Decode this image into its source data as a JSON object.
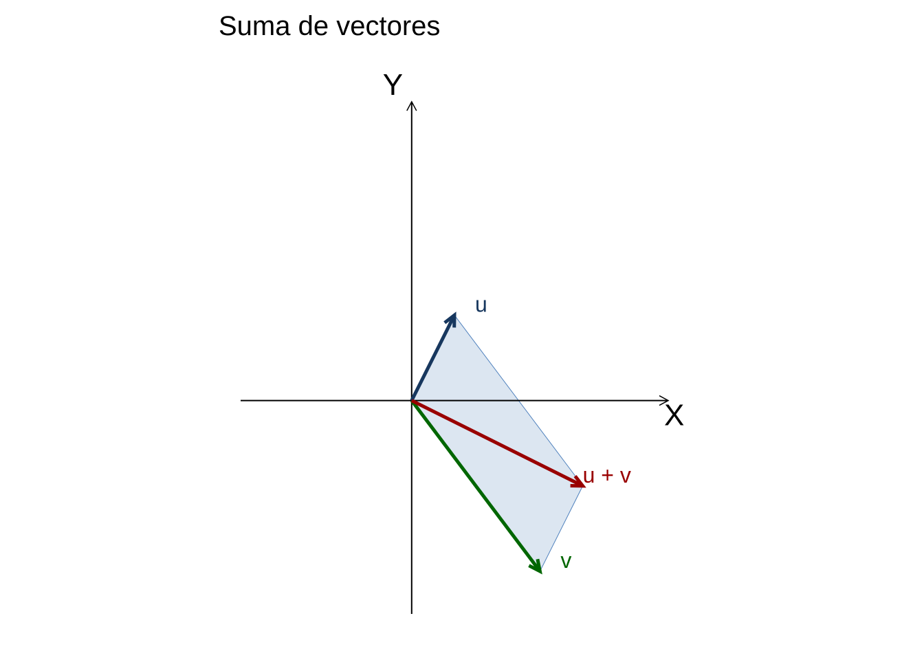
{
  "chart_data": {
    "type": "vector-diagram",
    "title": "Suma de vectores",
    "xlabel": "X",
    "ylabel": "Y",
    "xlim": [
      -2,
      3
    ],
    "ylim": [
      -2.5,
      3.5
    ],
    "grid": false,
    "parallelogram_fill": "#dce6f1",
    "parallelogram_edge": "#4f81bd",
    "vectors": [
      {
        "name": "u",
        "from": [
          0,
          0
        ],
        "to": [
          0.5,
          1
        ],
        "color": "#17375e"
      },
      {
        "name": "v",
        "from": [
          0,
          0
        ],
        "to": [
          1.5,
          -2
        ],
        "color": "#006600"
      },
      {
        "name": "u + v",
        "from": [
          0,
          0
        ],
        "to": [
          2,
          -1
        ],
        "color": "#990000"
      }
    ]
  }
}
